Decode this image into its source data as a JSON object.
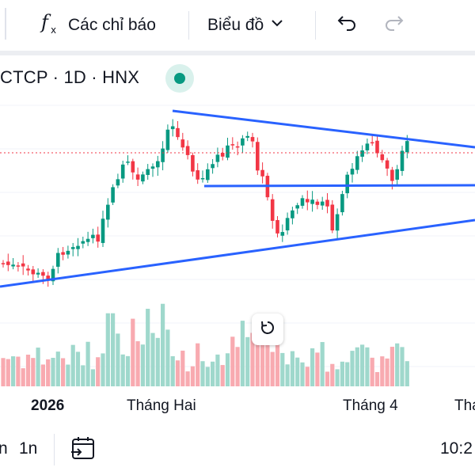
{
  "toolbar": {
    "indicators_label": "Các chỉ báo",
    "chart_type_label": "Biểu đồ",
    "icons": [
      "fx-icon",
      "chevron-down-icon",
      "undo-icon",
      "redo-icon"
    ]
  },
  "symbol": {
    "title": "CTCP · 1D · HNX",
    "status_color": "#089981"
  },
  "colors": {
    "up": "#089981",
    "down": "#f23645",
    "trendline": "#2962ff",
    "volume_up": "#9fd8cc",
    "volume_down": "#f8aab0"
  },
  "time_axis": {
    "labels": [
      "2026",
      "Tháng Hai",
      "Tháng 4",
      "Thá"
    ]
  },
  "bottom_bar": {
    "range_1": "n",
    "range_2": "1n",
    "time": "10:2"
  }
}
